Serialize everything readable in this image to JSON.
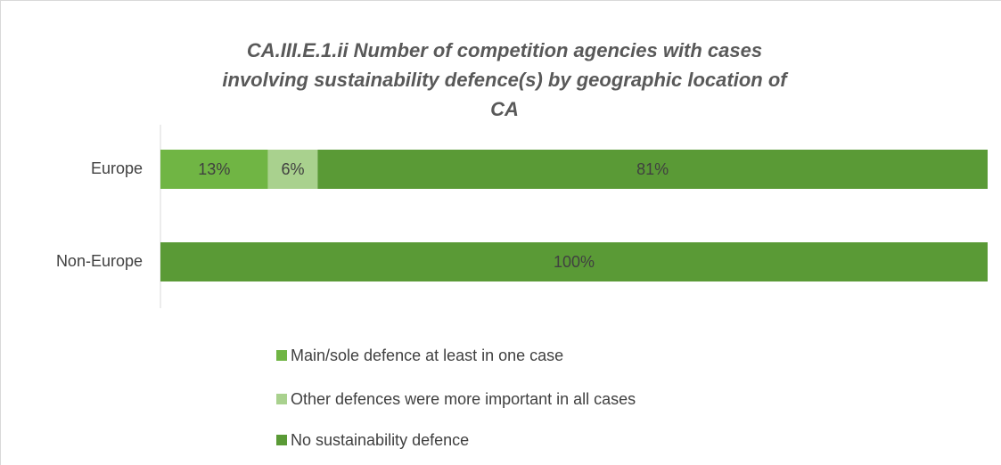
{
  "chart_data": {
    "type": "bar",
    "orientation": "horizontal",
    "stacked": true,
    "title": "CA.III.E.1.ii Number of competition agencies with cases involving sustainability defence(s) by geographic location of CA",
    "categories": [
      "Europe",
      "Non-Europe"
    ],
    "series": [
      {
        "name": "Main/sole defence at least in one case",
        "color": "#70b544",
        "values": [
          13,
          0
        ],
        "value_labels": [
          "13%",
          null
        ]
      },
      {
        "name": "Other defences were more important in all cases",
        "color": "#a9d18e",
        "values": [
          6,
          0
        ],
        "value_labels": [
          "6%",
          null
        ]
      },
      {
        "name": "No sustainability defence",
        "color": "#5a9a36",
        "values": [
          81,
          100
        ],
        "value_labels": [
          "81%",
          "100%"
        ]
      }
    ],
    "legend": "bottom"
  }
}
